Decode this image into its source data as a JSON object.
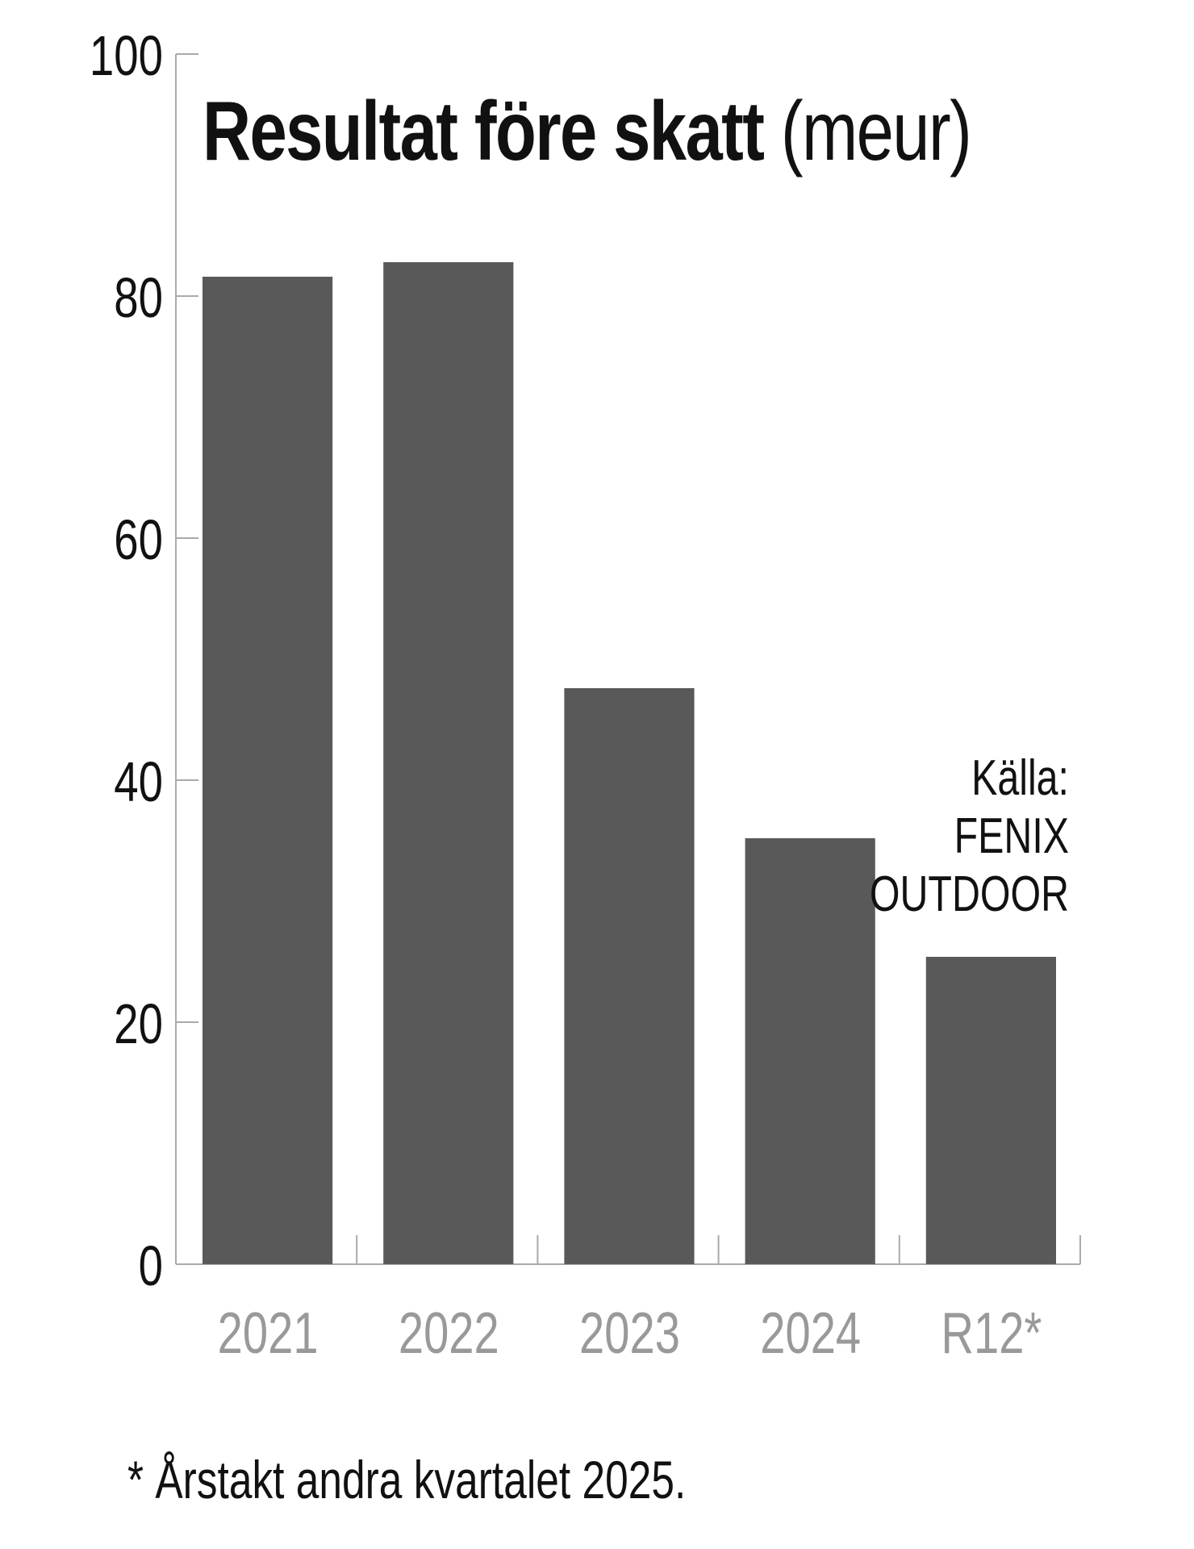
{
  "chart_data": {
    "type": "bar",
    "title": "Resultat före skatt",
    "title_unit": "(meur)",
    "categories": [
      "2021",
      "2022",
      "2023",
      "2024",
      "R12*"
    ],
    "values": [
      81.6,
      82.8,
      47.6,
      35.2,
      25.4
    ],
    "xlabel": "",
    "ylabel": "",
    "ylim": [
      0,
      100
    ],
    "yticks": [
      0,
      20,
      40,
      60,
      80,
      100
    ],
    "grid": false,
    "bar_color": "#595959",
    "axis_color": "#aaaaaa",
    "category_label_color": "#999999",
    "source_lines": [
      "Källa:",
      "FENIX",
      "OUTDOOR"
    ],
    "footnote": "* Årstakt andra kvartalet 2025."
  }
}
